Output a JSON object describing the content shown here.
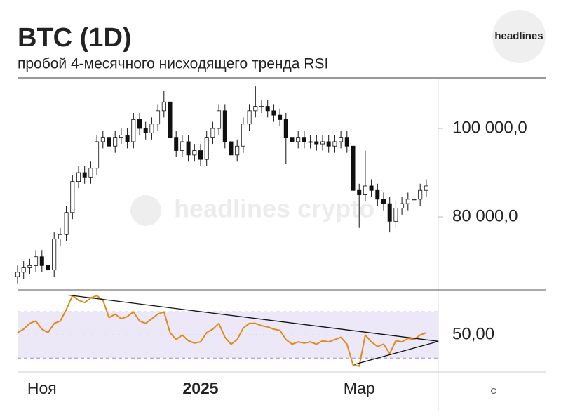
{
  "brand": {
    "logo": "headlines",
    "watermark": "headlines crypto"
  },
  "chart_data": [
    {
      "type": "candlestick",
      "title": "BTC (1D)",
      "subtitle": "пробой 4-месячного нисходящего тренда RSI",
      "categories": [
        null,
        null,
        null,
        null,
        "Ноя",
        null,
        null,
        null,
        null,
        null,
        null,
        null,
        null,
        null,
        null,
        null,
        null,
        null,
        null,
        null,
        null,
        null,
        null,
        null,
        null,
        null,
        null,
        null,
        null,
        null,
        "2025",
        null,
        null,
        null,
        null,
        null,
        null,
        null,
        null,
        null,
        null,
        null,
        null,
        null,
        null,
        null,
        null,
        null,
        null,
        null,
        null,
        null,
        null,
        null,
        null,
        null,
        "Мар",
        null,
        null,
        null,
        null,
        null,
        null,
        null,
        null,
        null,
        null,
        null
      ],
      "open": [
        66500,
        67500,
        68500,
        69000,
        71000,
        69000,
        68000,
        75000,
        76000,
        81000,
        88000,
        90000,
        89000,
        91000,
        97000,
        98000,
        96000,
        98000,
        98500,
        97000,
        102000,
        100000,
        99000,
        101000,
        104000,
        106000,
        98000,
        95000,
        97000,
        94000,
        95000,
        93000,
        98000,
        100000,
        104000,
        97000,
        94000,
        96000,
        101000,
        104000,
        105000,
        105000,
        104000,
        103000,
        102000,
        98000,
        97000,
        98000,
        97000,
        97000,
        96500,
        97000,
        96000,
        97000,
        98000,
        96000,
        86000,
        85000,
        87000,
        86000,
        84000,
        83000,
        79000,
        82000,
        83000,
        84000,
        84000,
        86000
      ],
      "high": [
        69000,
        70000,
        70500,
        72500,
        72500,
        70500,
        76500,
        77500,
        82500,
        89500,
        91500,
        91500,
        92500,
        98500,
        99500,
        99500,
        99500,
        100000,
        100000,
        103500,
        103500,
        101500,
        102500,
        105500,
        108500,
        107500,
        99500,
        98500,
        98500,
        96500,
        96500,
        99500,
        101500,
        105500,
        105500,
        98500,
        97500,
        102500,
        105500,
        109500,
        106500,
        106500,
        105500,
        104500,
        103500,
        99500,
        99500,
        99500,
        98500,
        98500,
        98500,
        98500,
        98500,
        99500,
        99500,
        97500,
        87500,
        95000,
        88500,
        87500,
        85500,
        84500,
        83500,
        84500,
        85500,
        85500,
        87500,
        88500
      ],
      "low": [
        65000,
        66000,
        67000,
        67500,
        67500,
        66500,
        66500,
        73500,
        74500,
        79500,
        86500,
        87500,
        87500,
        89500,
        95500,
        94500,
        94500,
        96500,
        95500,
        95500,
        98500,
        97500,
        97500,
        99500,
        102500,
        96500,
        93500,
        93500,
        92500,
        92500,
        91500,
        91500,
        96500,
        98500,
        95500,
        90500,
        92500,
        94500,
        99500,
        102500,
        103500,
        102500,
        101500,
        100500,
        92000,
        95500,
        95500,
        95500,
        95500,
        95000,
        95000,
        94500,
        94500,
        95500,
        94500,
        79000,
        77500,
        83500,
        84500,
        82500,
        81500,
        76500,
        77500,
        80500,
        81500,
        82500,
        82500,
        84500
      ],
      "close": [
        67500,
        68500,
        69000,
        71000,
        69000,
        68000,
        75000,
        76000,
        81000,
        88000,
        90000,
        89000,
        91000,
        97000,
        98000,
        96000,
        98000,
        98500,
        97000,
        102000,
        100000,
        99000,
        101000,
        104000,
        106000,
        98000,
        95000,
        97000,
        94000,
        95000,
        93000,
        98000,
        100000,
        104000,
        97000,
        94000,
        96000,
        101000,
        104000,
        105000,
        105000,
        104000,
        103000,
        102000,
        98000,
        97000,
        98000,
        97000,
        97000,
        96500,
        97000,
        96000,
        97000,
        98000,
        96000,
        86000,
        85000,
        87000,
        86000,
        84000,
        83000,
        79000,
        82000,
        83000,
        84000,
        84000,
        86000,
        87000
      ],
      "ylim": [
        63500,
        110800
      ],
      "yticks": [
        {
          "value": 80000,
          "label": "80 000,0"
        },
        {
          "value": 100000,
          "label": "100 000,0"
        }
      ]
    },
    {
      "type": "line",
      "name": "RSI",
      "color": "#e08a1e",
      "values": [
        52,
        55,
        60,
        62,
        55,
        52,
        60,
        62,
        72,
        84,
        80,
        78,
        82,
        84,
        80,
        65,
        68,
        64,
        66,
        70,
        62,
        60,
        64,
        68,
        70,
        52,
        46,
        50,
        45,
        43,
        44,
        52,
        55,
        60,
        48,
        42,
        46,
        56,
        60,
        60,
        58,
        57,
        55,
        54,
        46,
        42,
        44,
        43,
        44,
        42,
        45,
        44,
        46,
        48,
        42,
        24,
        23,
        50,
        44,
        40,
        42,
        34,
        45,
        44,
        47,
        46,
        50,
        52
      ],
      "ylim": [
        18,
        89
      ],
      "yticks": [
        {
          "value": 50,
          "label": "50,00"
        }
      ],
      "band": [
        30,
        70
      ],
      "trendlines": [
        {
          "x": [
            8.3,
            69
          ],
          "y": [
            84.5,
            44.5
          ]
        },
        {
          "x": [
            55.2,
            69
          ],
          "y": [
            24.5,
            44.5
          ]
        }
      ]
    }
  ]
}
